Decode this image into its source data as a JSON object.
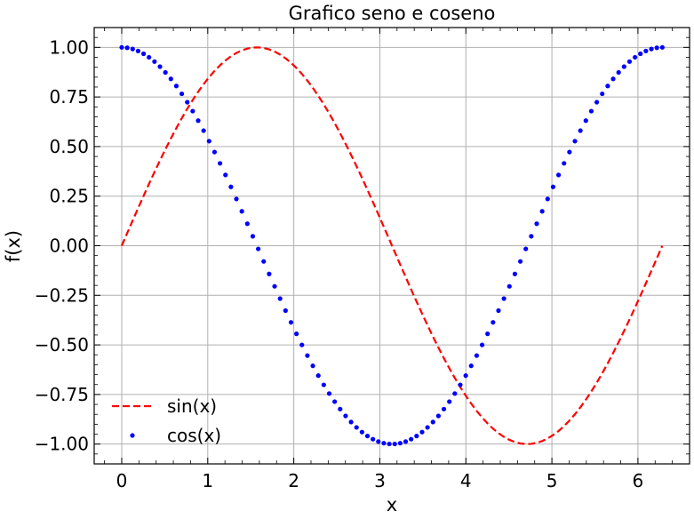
{
  "chart_data": {
    "type": "line",
    "title": "Grafico seno e coseno",
    "xlabel": "x",
    "ylabel": "f(x)",
    "xlim": [
      -0.32,
      6.6
    ],
    "ylim": [
      -1.1,
      1.1
    ],
    "x_ticks": [
      0,
      1,
      2,
      3,
      4,
      5,
      6
    ],
    "x_tick_labels": [
      "0",
      "1",
      "2",
      "3",
      "4",
      "5",
      "6"
    ],
    "y_ticks": [
      -1.0,
      -0.75,
      -0.5,
      -0.25,
      0.0,
      0.25,
      0.5,
      0.75,
      1.0
    ],
    "y_tick_labels": [
      "−1.00",
      "−0.75",
      "−0.50",
      "−0.25",
      "0.00",
      "0.25",
      "0.50",
      "0.75",
      "1.00"
    ],
    "grid": true,
    "legend_position": "lower-left",
    "x": [
      0,
      0.0635,
      0.1269,
      0.1904,
      0.2539,
      0.3173,
      0.3808,
      0.4443,
      0.5077,
      0.5712,
      0.6347,
      0.6981,
      0.7616,
      0.8251,
      0.8885,
      0.952,
      1.0155,
      1.0789,
      1.1424,
      1.2059,
      1.2693,
      1.3328,
      1.3963,
      1.4597,
      1.5232,
      1.5867,
      1.6501,
      1.7136,
      1.7771,
      1.8405,
      1.904,
      1.9675,
      2.0309,
      2.0944,
      2.1579,
      2.2213,
      2.2848,
      2.3483,
      2.4117,
      2.4752,
      2.5387,
      2.6021,
      2.6656,
      2.7291,
      2.7925,
      2.856,
      2.9195,
      2.9829,
      3.0464,
      3.1099,
      3.1733,
      3.2368,
      3.3003,
      3.3637,
      3.4272,
      3.4907,
      3.5541,
      3.6176,
      3.6811,
      3.7445,
      3.808,
      3.8715,
      3.9349,
      3.9984,
      4.0619,
      4.1253,
      4.1888,
      4.2523,
      4.3157,
      4.3792,
      4.4427,
      4.5061,
      4.5696,
      4.6331,
      4.6965,
      4.76,
      4.8235,
      4.8869,
      4.9504,
      5.0139,
      5.0773,
      5.1408,
      5.2043,
      5.2677,
      5.3312,
      5.3947,
      5.4581,
      5.5216,
      5.5851,
      5.6485,
      5.712,
      5.7755,
      5.8389,
      5.9024,
      5.9659,
      6.0293,
      6.0928,
      6.1563,
      6.2197,
      6.2832
    ],
    "series": [
      {
        "name": "sin(x)",
        "style": "dashed",
        "color": "#ff0000",
        "values": [
          0,
          0.0634,
          0.1266,
          0.1893,
          0.2511,
          0.312,
          0.3717,
          0.4298,
          0.4862,
          0.5406,
          0.5929,
          0.6428,
          0.6901,
          0.7346,
          0.7761,
          0.8146,
          0.8497,
          0.8815,
          0.9096,
          0.9341,
          0.9549,
          0.9718,
          0.9848,
          0.9938,
          0.9989,
          0.9999,
          0.9969,
          0.9898,
          0.9788,
          0.9638,
          0.945,
          0.9224,
          0.896,
          0.866,
          0.8326,
          0.7958,
          0.7557,
          0.7127,
          0.6668,
          0.6182,
          0.5671,
          0.5137,
          0.4582,
          0.401,
          0.3421,
          0.2817,
          0.2203,
          0.1581,
          0.0951,
          0.0317,
          -0.0317,
          -0.0951,
          -0.1581,
          -0.2203,
          -0.2817,
          -0.3421,
          -0.401,
          -0.4582,
          -0.5137,
          -0.5671,
          -0.6182,
          -0.6668,
          -0.7127,
          -0.7557,
          -0.7958,
          -0.8326,
          -0.866,
          -0.896,
          -0.9224,
          -0.945,
          -0.9638,
          -0.9788,
          -0.9898,
          -0.9969,
          -0.9999,
          -0.9989,
          -0.9938,
          -0.9848,
          -0.9718,
          -0.9549,
          -0.9341,
          -0.9096,
          -0.8815,
          -0.8497,
          -0.8146,
          -0.7761,
          -0.7346,
          -0.6901,
          -0.6428,
          -0.5929,
          -0.5406,
          -0.4862,
          -0.4298,
          -0.3717,
          -0.312,
          -0.2511,
          -0.1893,
          -0.1266,
          -0.0634,
          0
        ]
      },
      {
        "name": "cos(x)",
        "style": "dots",
        "color": "#0000ff",
        "values": [
          1,
          0.998,
          0.992,
          0.9818,
          0.9679,
          0.9501,
          0.9284,
          0.9029,
          0.8738,
          0.8413,
          0.8053,
          0.766,
          0.7237,
          0.6785,
          0.6306,
          0.5801,
          0.5272,
          0.4723,
          0.4154,
          0.3569,
          0.2969,
          0.2358,
          0.1736,
          0.1108,
          0.0475,
          -0.0159,
          -0.0792,
          -0.1423,
          -0.2048,
          -0.2665,
          -0.3271,
          -0.3863,
          -0.4441,
          -0.5,
          -0.554,
          -0.6056,
          -0.6549,
          -0.7015,
          -0.7453,
          -0.7861,
          -0.8237,
          -0.8581,
          -0.8888,
          -0.9161,
          -0.9397,
          -0.9595,
          -0.9755,
          -0.9874,
          -0.9955,
          -0.9995,
          -0.9995,
          -0.9955,
          -0.9874,
          -0.9755,
          -0.9595,
          -0.9397,
          -0.9161,
          -0.8888,
          -0.8581,
          -0.8237,
          -0.7861,
          -0.7453,
          -0.7015,
          -0.6549,
          -0.6056,
          -0.554,
          -0.5,
          -0.4441,
          -0.3863,
          -0.3271,
          -0.2665,
          -0.2048,
          -0.1423,
          -0.0792,
          -0.0159,
          0.0475,
          0.1108,
          0.1736,
          0.2358,
          0.2969,
          0.3569,
          0.4154,
          0.4723,
          0.5272,
          0.5801,
          0.6306,
          0.6785,
          0.7237,
          0.766,
          0.8053,
          0.8413,
          0.8738,
          0.9029,
          0.9284,
          0.9501,
          0.9679,
          0.9818,
          0.992,
          0.998,
          1
        ]
      }
    ]
  }
}
